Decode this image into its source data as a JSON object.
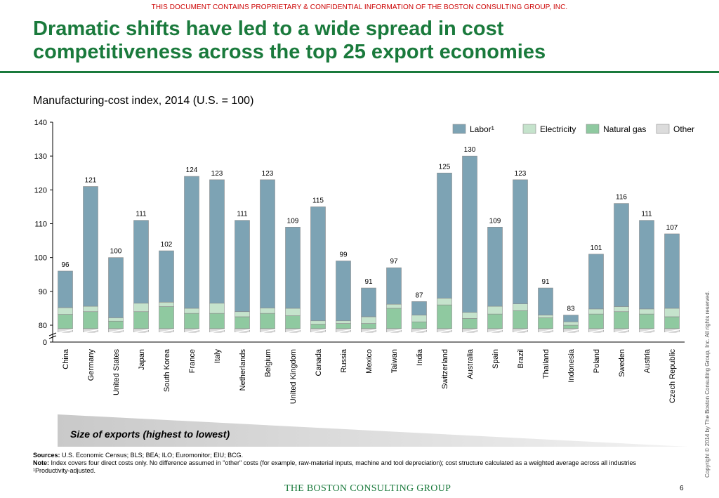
{
  "header": {
    "confidential": "THIS DOCUMENT CONTAINS PROPRIETARY & CONFIDENTIAL INFORMATION OF THE BOSTON CONSULTING GROUP, INC.",
    "title_line1": "Dramatic shifts have led to a wide spread in cost",
    "title_line2": "competitiveness across the top 25 export economies"
  },
  "chart_data": {
    "type": "bar",
    "stacked": true,
    "title": "Manufacturing-cost index, 2014 (U.S. = 100)",
    "ylim": [
      0,
      140
    ],
    "axis_break": true,
    "y_ticks": [
      "0",
      "80",
      "90",
      "100",
      "110",
      "120",
      "130",
      "140"
    ],
    "legend_position": "top-right",
    "categories": [
      "China",
      "Germany",
      "United States",
      "Japan",
      "South Korea",
      "France",
      "Italy",
      "Netherlands",
      "Belgium",
      "United Kingdom",
      "Canada",
      "Russia",
      "Mexico",
      "Taiwan",
      "India",
      "Switzerland",
      "Australia",
      "Spain",
      "Brazil",
      "Thailand",
      "Indonesia",
      "Poland",
      "Sweden",
      "Austria",
      "Czech Republic"
    ],
    "totals": [
      96,
      121,
      100,
      111,
      102,
      124,
      123,
      111,
      123,
      109,
      115,
      99,
      91,
      97,
      87,
      125,
      130,
      109,
      123,
      91,
      83,
      101,
      116,
      111,
      107
    ],
    "series": [
      {
        "name": "Other",
        "color": "#dcdcdc",
        "values": [
          79,
          79,
          79,
          79,
          79,
          79,
          79,
          79,
          79,
          79,
          79,
          79,
          79,
          79,
          79,
          79,
          79,
          79,
          79,
          79,
          79,
          79,
          79,
          79,
          79
        ]
      },
      {
        "name": "Natural gas",
        "color": "#8fc9a0",
        "values": [
          4.2,
          5.0,
          2.2,
          5.0,
          6.5,
          4.5,
          4.5,
          3.5,
          4.5,
          3.8,
          1.3,
          1.5,
          1.5,
          6.0,
          2.0,
          7.0,
          3.0,
          4.3,
          5.3,
          3.2,
          1.0,
          4.3,
          5.0,
          4.3,
          3.5
        ]
      },
      {
        "name": "Electricity",
        "color": "#c5e3cc",
        "values": [
          2.0,
          1.6,
          1.0,
          2.5,
          1.3,
          1.5,
          3.0,
          1.5,
          1.6,
          2.2,
          1.0,
          0.8,
          2.0,
          1.2,
          2.0,
          2.0,
          1.8,
          2.3,
          2.0,
          0.8,
          1.0,
          1.5,
          1.5,
          1.5,
          2.5
        ]
      },
      {
        "name": "Labor¹",
        "color": "#7da3b4",
        "values": [
          10.8,
          35.4,
          17.8,
          24.5,
          15.2,
          39.0,
          36.5,
          27.0,
          37.9,
          24.0,
          33.7,
          17.7,
          8.5,
          10.8,
          4.0,
          37.0,
          46.2,
          23.4,
          36.7,
          8.0,
          2.0,
          16.2,
          30.5,
          26.2,
          22.0
        ]
      }
    ],
    "x_direction_label": "Size of exports (highest to lowest)"
  },
  "footer": {
    "sources_label": "Sources:",
    "sources_text": "U.S. Economic Census; BLS; BEA; ILO; Euromonitor; EIU; BCG.",
    "note_label": "Note:",
    "note_text": "Index covers four direct costs only. No difference assumed in \"other\" costs (for example, raw-material inputs, machine and tool depreciation); cost structure calculated as a weighted average across all industries",
    "footnote": "¹Productivity-adjusted.",
    "logo": "THE BOSTON CONSULTING GROUP",
    "page_number": "6",
    "copyright": "Copyright © 2014 by The Boston Consulting Group, Inc. All rights reserved."
  }
}
